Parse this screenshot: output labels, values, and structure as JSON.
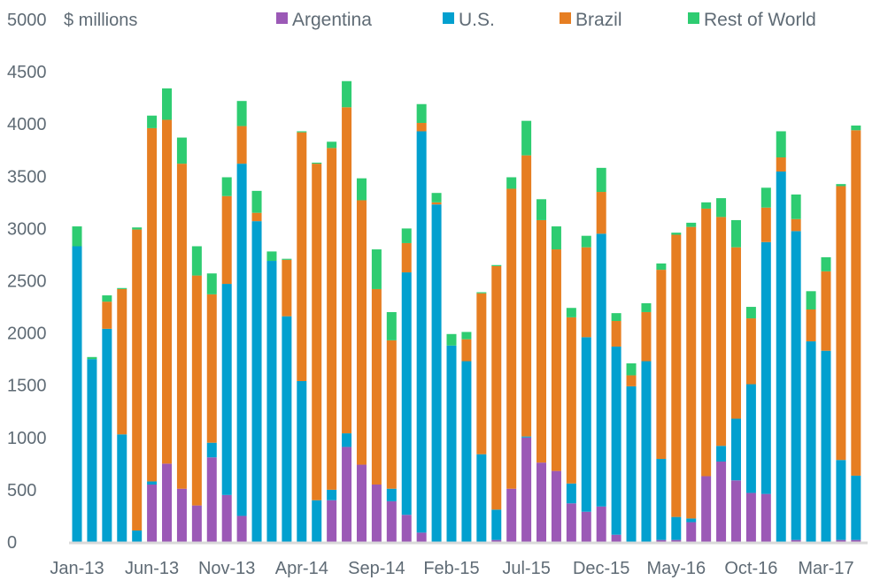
{
  "chart_data": {
    "type": "bar",
    "stacked": true,
    "title": "",
    "ylabel": "$ millions",
    "xlabel": "",
    "ylim": [
      0,
      5000
    ],
    "yticks": [
      0,
      500,
      1000,
      1500,
      2000,
      2500,
      3000,
      3500,
      4000,
      4500,
      5000
    ],
    "grid": false,
    "legend_position": "top",
    "categories": [
      "Jan-13",
      "Feb-13",
      "Mar-13",
      "Apr-13",
      "May-13",
      "Jun-13",
      "Jul-13",
      "Aug-13",
      "Sep-13",
      "Oct-13",
      "Nov-13",
      "Dec-13",
      "Jan-14",
      "Feb-14",
      "Mar-14",
      "Apr-14",
      "May-14",
      "Jun-14",
      "Jul-14",
      "Aug-14",
      "Sep-14",
      "Oct-14",
      "Nov-14",
      "Dec-14",
      "Jan-15",
      "Feb-15",
      "Mar-15",
      "Apr-15",
      "May-15",
      "Jun-15",
      "Jul-15",
      "Aug-15",
      "Sep-15",
      "Oct-15",
      "Nov-15",
      "Dec-15",
      "Jan-16",
      "Feb-16",
      "Mar-16",
      "Apr-16",
      "May-16",
      "Jun-16",
      "Jul-16",
      "Aug-16",
      "Sep-16",
      "Oct-16",
      "Nov-16",
      "Dec-16",
      "Jan-17",
      "Feb-17",
      "Mar-17",
      "Apr-17",
      "May-17"
    ],
    "xtick_labels": [
      "Jan-13",
      "Jun-13",
      "Nov-13",
      "Apr-14",
      "Sep-14",
      "Feb-15",
      "Jul-15",
      "Dec-15",
      "May-16",
      "Oct-16",
      "Mar-17"
    ],
    "xtick_every": 5,
    "series": [
      {
        "name": "Argentina",
        "color": "#9b59b6",
        "values": [
          0,
          0,
          0,
          0,
          0,
          550,
          750,
          510,
          350,
          810,
          450,
          250,
          0,
          0,
          0,
          0,
          0,
          400,
          910,
          740,
          550,
          390,
          260,
          90,
          0,
          0,
          0,
          0,
          20,
          510,
          1000,
          760,
          680,
          370,
          290,
          340,
          70,
          0,
          0,
          20,
          20,
          190,
          630,
          770,
          590,
          470,
          460,
          0,
          20,
          0,
          0,
          20,
          20
        ]
      },
      {
        "name": "U.S.",
        "color": "#02a0cf",
        "values": [
          2830,
          1750,
          2040,
          1030,
          110,
          30,
          0,
          0,
          0,
          140,
          2020,
          3370,
          3070,
          2690,
          2160,
          1540,
          400,
          100,
          130,
          0,
          0,
          120,
          2320,
          3840,
          3230,
          1880,
          1730,
          840,
          290,
          0,
          10,
          0,
          0,
          190,
          1670,
          2610,
          1800,
          1490,
          1730,
          775,
          220,
          35,
          0,
          150,
          590,
          1040,
          2410,
          3545,
          2955,
          1920,
          1830,
          765,
          615
        ]
      },
      {
        "name": "Brazil",
        "color": "#e67e22",
        "values": [
          0,
          0,
          260,
          1390,
          2880,
          3380,
          3290,
          3110,
          2200,
          1420,
          840,
          360,
          80,
          0,
          540,
          2380,
          3220,
          3270,
          3120,
          2530,
          1870,
          1420,
          280,
          80,
          20,
          0,
          210,
          1540,
          2330,
          2870,
          2690,
          2320,
          2120,
          1590,
          860,
          400,
          245,
          105,
          470,
          1810,
          2700,
          2790,
          2560,
          2190,
          1640,
          630,
          330,
          135,
          115,
          305,
          760,
          2620,
          3305
        ]
      },
      {
        "name": "Rest of World",
        "color": "#2ecc71",
        "values": [
          190,
          20,
          60,
          10,
          20,
          120,
          300,
          250,
          280,
          200,
          180,
          240,
          210,
          90,
          10,
          10,
          10,
          60,
          250,
          210,
          380,
          270,
          140,
          180,
          90,
          110,
          70,
          10,
          10,
          110,
          330,
          200,
          220,
          90,
          110,
          230,
          75,
          115,
          85,
          60,
          20,
          40,
          60,
          180,
          260,
          110,
          190,
          250,
          235,
          175,
          135,
          20,
          45
        ]
      }
    ]
  }
}
